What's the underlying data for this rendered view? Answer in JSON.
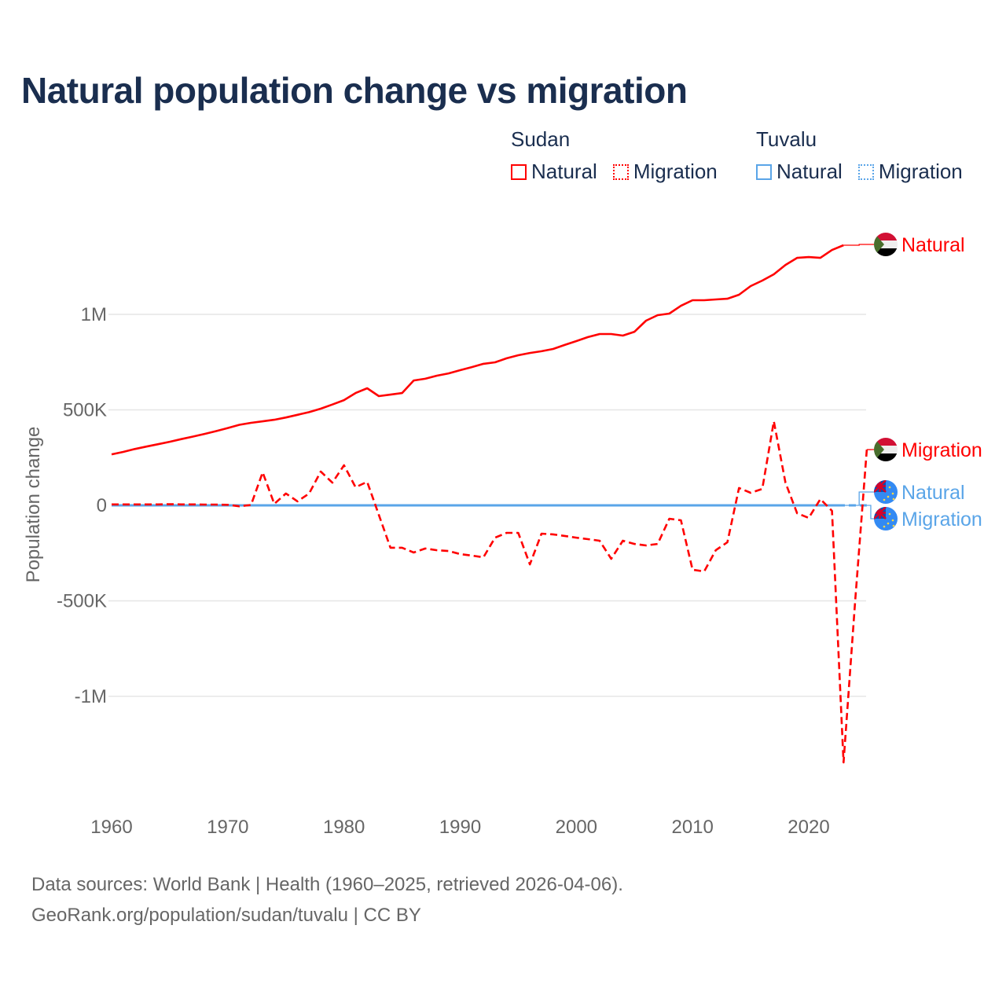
{
  "title": "Natural population change vs migration",
  "legend": [
    {
      "group": "Sudan",
      "items": [
        {
          "label": "Natural",
          "style": "solid"
        },
        {
          "label": "Migration",
          "style": "dotted"
        }
      ],
      "color": "#ff0000"
    },
    {
      "group": "Tuvalu",
      "items": [
        {
          "label": "Natural",
          "style": "solid"
        },
        {
          "label": "Migration",
          "style": "dotted"
        }
      ],
      "color": "#5aa5e8"
    }
  ],
  "footer": {
    "line1": "Data sources: World Bank | Health (1960–2025, retrieved 2026-04-06).",
    "line2": "GeoRank.org/population/sudan/tuvalu | CC BY"
  },
  "chart_data": {
    "type": "line",
    "title": "Natural population change vs migration",
    "xlabel": "",
    "ylabel": "Population change",
    "xlim": [
      1960,
      2025
    ],
    "ylim": [
      -1500000,
      1500000
    ],
    "x_ticks": [
      1960,
      1970,
      1980,
      1990,
      2000,
      2010,
      2020
    ],
    "x_tick_labels": [
      "1960",
      "1970",
      "1980",
      "1990",
      "2000",
      "2010",
      "2020"
    ],
    "y_ticks": [
      -1000000,
      -500000,
      0,
      500000,
      1000000
    ],
    "y_tick_labels": [
      "-1M",
      "-500K",
      "0",
      "500K",
      "1M"
    ],
    "grid": true,
    "legend_placement": "top-right",
    "x_start": 1960,
    "series": [
      {
        "name": "Sudan Natural",
        "country": "Sudan",
        "label": "Natural",
        "color": "#ff0000",
        "dash": "solid",
        "flag": "sudan",
        "values": [
          267000,
          280000,
          295000,
          308000,
          320000,
          333000,
          347000,
          360000,
          374000,
          389000,
          405000,
          422000,
          432000,
          440000,
          448000,
          460000,
          474000,
          488000,
          506000,
          528000,
          551000,
          588000,
          613000,
          572000,
          580000,
          588000,
          654000,
          663000,
          679000,
          691000,
          708000,
          724000,
          741000,
          749000,
          770000,
          786000,
          798000,
          807000,
          819000,
          840000,
          860000,
          881000,
          897000,
          897000,
          889000,
          909000,
          967000,
          996000,
          1004000,
          1045000,
          1074000,
          1074000,
          1078000,
          1082000,
          1103000,
          1148000,
          1177000,
          1210000,
          1259000,
          1296000,
          1300000,
          1296000,
          1337000,
          1362000
        ]
      },
      {
        "name": "Sudan Migration",
        "country": "Sudan",
        "label": "Migration",
        "color": "#ff0000",
        "dash": "dashed",
        "flag": "sudan",
        "values": [
          5000,
          5000,
          5000,
          5000,
          5000,
          6000,
          5000,
          5000,
          4000,
          4000,
          3000,
          -5000,
          2000,
          173000,
          8000,
          62000,
          21000,
          62000,
          177000,
          119000,
          210000,
          95000,
          123000,
          -50000,
          -222000,
          -222000,
          -247000,
          -226000,
          -235000,
          -239000,
          -255000,
          -263000,
          -272000,
          -169000,
          -144000,
          -144000,
          -309000,
          -148000,
          -152000,
          -160000,
          -169000,
          -177000,
          -185000,
          -280000,
          -185000,
          -202000,
          -210000,
          -202000,
          -70000,
          -78000,
          -337000,
          -346000,
          -235000,
          -193000,
          91000,
          66000,
          86000,
          440000,
          119000,
          -41000,
          -66000,
          33000,
          -29000,
          -1346000,
          -500000,
          292000
        ]
      },
      {
        "name": "Tuvalu Natural",
        "country": "Tuvalu",
        "label": "Natural",
        "color": "#5aa5e8",
        "dash": "solid",
        "flag": "tuvalu",
        "values": [
          150,
          150,
          150,
          150,
          150,
          150,
          150,
          150,
          150,
          150,
          150,
          150,
          150,
          150,
          150,
          150,
          150,
          150,
          150,
          150,
          150,
          150,
          150,
          150,
          150,
          150,
          150,
          150,
          150,
          150,
          150,
          150,
          150,
          150,
          150,
          150,
          150,
          150,
          150,
          150,
          150,
          150,
          150,
          150,
          150,
          150,
          150,
          150,
          150,
          150,
          150,
          150,
          150,
          150,
          150,
          150,
          150,
          150,
          150,
          150,
          150,
          150,
          150,
          150
        ]
      },
      {
        "name": "Tuvalu Migration",
        "country": "Tuvalu",
        "label": "Migration",
        "color": "#5aa5e8",
        "dash": "dashed",
        "flag": "tuvalu",
        "values": [
          -50,
          -50,
          -50,
          -50,
          -50,
          -50,
          -50,
          -50,
          -50,
          -50,
          -50,
          -50,
          -50,
          -50,
          -50,
          -50,
          -50,
          -50,
          -50,
          -50,
          -50,
          -50,
          -50,
          -50,
          -50,
          -50,
          -50,
          -50,
          -50,
          -50,
          -50,
          -50,
          -50,
          -50,
          -50,
          -50,
          -50,
          -50,
          -50,
          -50,
          -50,
          -50,
          -50,
          -50,
          -50,
          -50,
          -50,
          -50,
          -50,
          -50,
          -50,
          -50,
          -50,
          -50,
          -50,
          -50,
          -50,
          -50,
          -50,
          -50,
          -50,
          -50,
          -50,
          -50,
          -100,
          -100
        ]
      }
    ]
  }
}
